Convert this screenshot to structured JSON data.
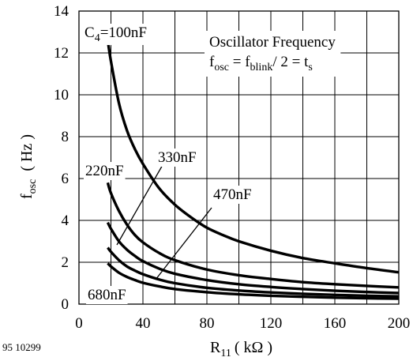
{
  "chart_data": {
    "type": "line",
    "xlim": [
      0,
      200
    ],
    "ylim": [
      0,
      14
    ],
    "x_ticks": [
      "0",
      "40",
      "80",
      "120",
      "160",
      "200"
    ],
    "y_ticks": [
      "0",
      "2",
      "4",
      "6",
      "8",
      "10",
      "12",
      "14"
    ],
    "grid": true,
    "xlabel": {
      "main": "R",
      "sub": "11",
      "tail": "( kΩ )"
    },
    "ylabel": {
      "main": "f",
      "sub": "osc",
      "tail": "( Hz )"
    },
    "footnote": "95 10299",
    "infobox": {
      "title": "Oscillator Frequency",
      "formula": {
        "f1": "f",
        "s1": "osc",
        "eq1": " = ",
        "f2": "f",
        "s2": "blink",
        "rest": "/ 2 = t",
        "s3": "s"
      }
    },
    "series": [
      {
        "name": "100nF",
        "x": [
          18,
          20,
          25,
          30,
          35,
          40,
          50,
          60,
          70,
          80,
          90,
          100,
          120,
          140,
          160,
          180,
          200
        ],
        "y": [
          12.6,
          11.6,
          9.6,
          8.3,
          7.4,
          6.7,
          5.55,
          4.75,
          4.15,
          3.65,
          3.3,
          3.0,
          2.55,
          2.2,
          1.95,
          1.72,
          1.52
        ]
      },
      {
        "name": "220nF",
        "x": [
          18,
          20,
          25,
          30,
          35,
          40,
          50,
          60,
          80,
          100,
          120,
          140,
          160,
          180,
          200
        ],
        "y": [
          5.8,
          5.3,
          4.45,
          3.8,
          3.3,
          2.95,
          2.45,
          2.1,
          1.65,
          1.38,
          1.2,
          1.05,
          0.95,
          0.87,
          0.8
        ]
      },
      {
        "name": "330nF",
        "x": [
          18,
          20,
          25,
          30,
          35,
          40,
          50,
          60,
          80,
          100,
          120,
          140,
          160,
          180,
          200
        ],
        "y": [
          3.9,
          3.6,
          3.0,
          2.6,
          2.3,
          2.05,
          1.7,
          1.45,
          1.15,
          0.95,
          0.82,
          0.72,
          0.64,
          0.58,
          0.53
        ]
      },
      {
        "name": "470nF",
        "x": [
          18,
          20,
          25,
          30,
          35,
          40,
          50,
          60,
          80,
          100,
          120,
          140,
          160,
          180,
          200
        ],
        "y": [
          2.7,
          2.5,
          2.1,
          1.8,
          1.6,
          1.43,
          1.18,
          1.0,
          0.78,
          0.65,
          0.56,
          0.49,
          0.44,
          0.4,
          0.37
        ]
      },
      {
        "name": "680nF",
        "x": [
          18,
          20,
          25,
          30,
          35,
          40,
          50,
          60,
          80,
          100,
          120,
          140,
          160,
          180,
          200
        ],
        "y": [
          1.95,
          1.8,
          1.5,
          1.3,
          1.15,
          1.02,
          0.85,
          0.72,
          0.57,
          0.47,
          0.4,
          0.35,
          0.31,
          0.28,
          0.26
        ]
      }
    ],
    "curve_labels": [
      {
        "id": "100nF",
        "prefix": "C",
        "sub": "4",
        "text": "=100nF"
      },
      {
        "id": "220nF",
        "text": "220nF"
      },
      {
        "id": "330nF",
        "text": "330nF"
      },
      {
        "id": "470nF",
        "text": "470nF"
      },
      {
        "id": "680nF",
        "text": "680nF"
      }
    ],
    "line_color": "#000000",
    "grid_color": "#000000",
    "background": "#ffffff"
  }
}
